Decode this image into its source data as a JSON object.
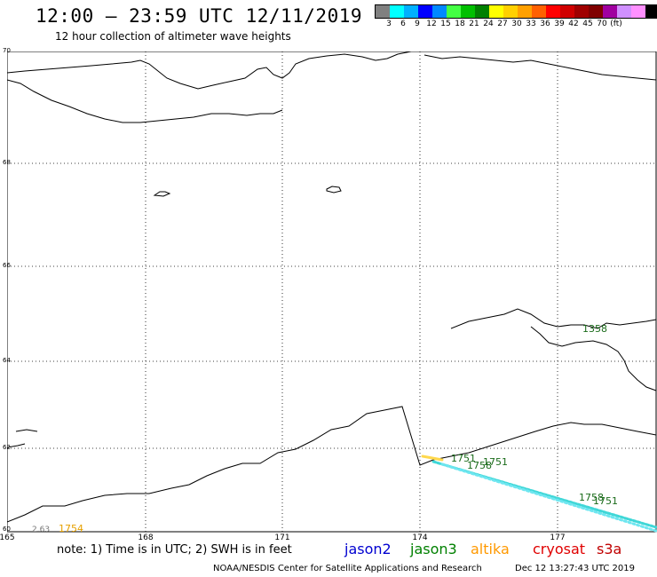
{
  "header": {
    "title": "12:00 – 23:59 UTC 12/11/2019",
    "subtitle": "12 hour collection of altimeter wave heights"
  },
  "scale": {
    "colors": [
      "#808080",
      "#00ffff",
      "#00b0ff",
      "#0000ff",
      "#0088ff",
      "#44ff44",
      "#00c000",
      "#008000",
      "#ffff00",
      "#ffd000",
      "#ffa000",
      "#ff6000",
      "#ff0000",
      "#d00000",
      "#a00000",
      "#800000",
      "#a000a0",
      "#d090ff",
      "#ff90ff",
      "#000000"
    ],
    "labels": [
      "3",
      "6",
      "9",
      "12",
      "15",
      "18",
      "21",
      "24",
      "27",
      "30",
      "33",
      "36",
      "39",
      "42",
      "45",
      "70",
      "(ft)"
    ]
  },
  "axes": {
    "lat_labels": [
      "70",
      "68",
      "66",
      "64",
      "62",
      "60"
    ],
    "lon_labels": [
      "165",
      "168",
      "171",
      "174",
      "177"
    ]
  },
  "annotations": {
    "jason3_labels": [
      "1358",
      "1751",
      "1758",
      "1751",
      "1758",
      "1751"
    ],
    "gray_label": "2.63",
    "altika_label": "1754"
  },
  "footer": {
    "note": "note: 1) Time is in UTC; 2) SWH is in feet",
    "credit": "NOAA/NESDIS Center for Satellite Applications and Research",
    "timestamp": "Dec 12 13:27:43 UTC 2019"
  },
  "satellites": [
    {
      "name": "jason2",
      "color": "#0000d0"
    },
    {
      "name": "jason3",
      "color": "#008000"
    },
    {
      "name": "altika",
      "color": "#ff9900"
    },
    {
      "name": "cryosat",
      "color": "#e00000"
    },
    {
      "name": "s3a",
      "color": "#c00000"
    }
  ]
}
